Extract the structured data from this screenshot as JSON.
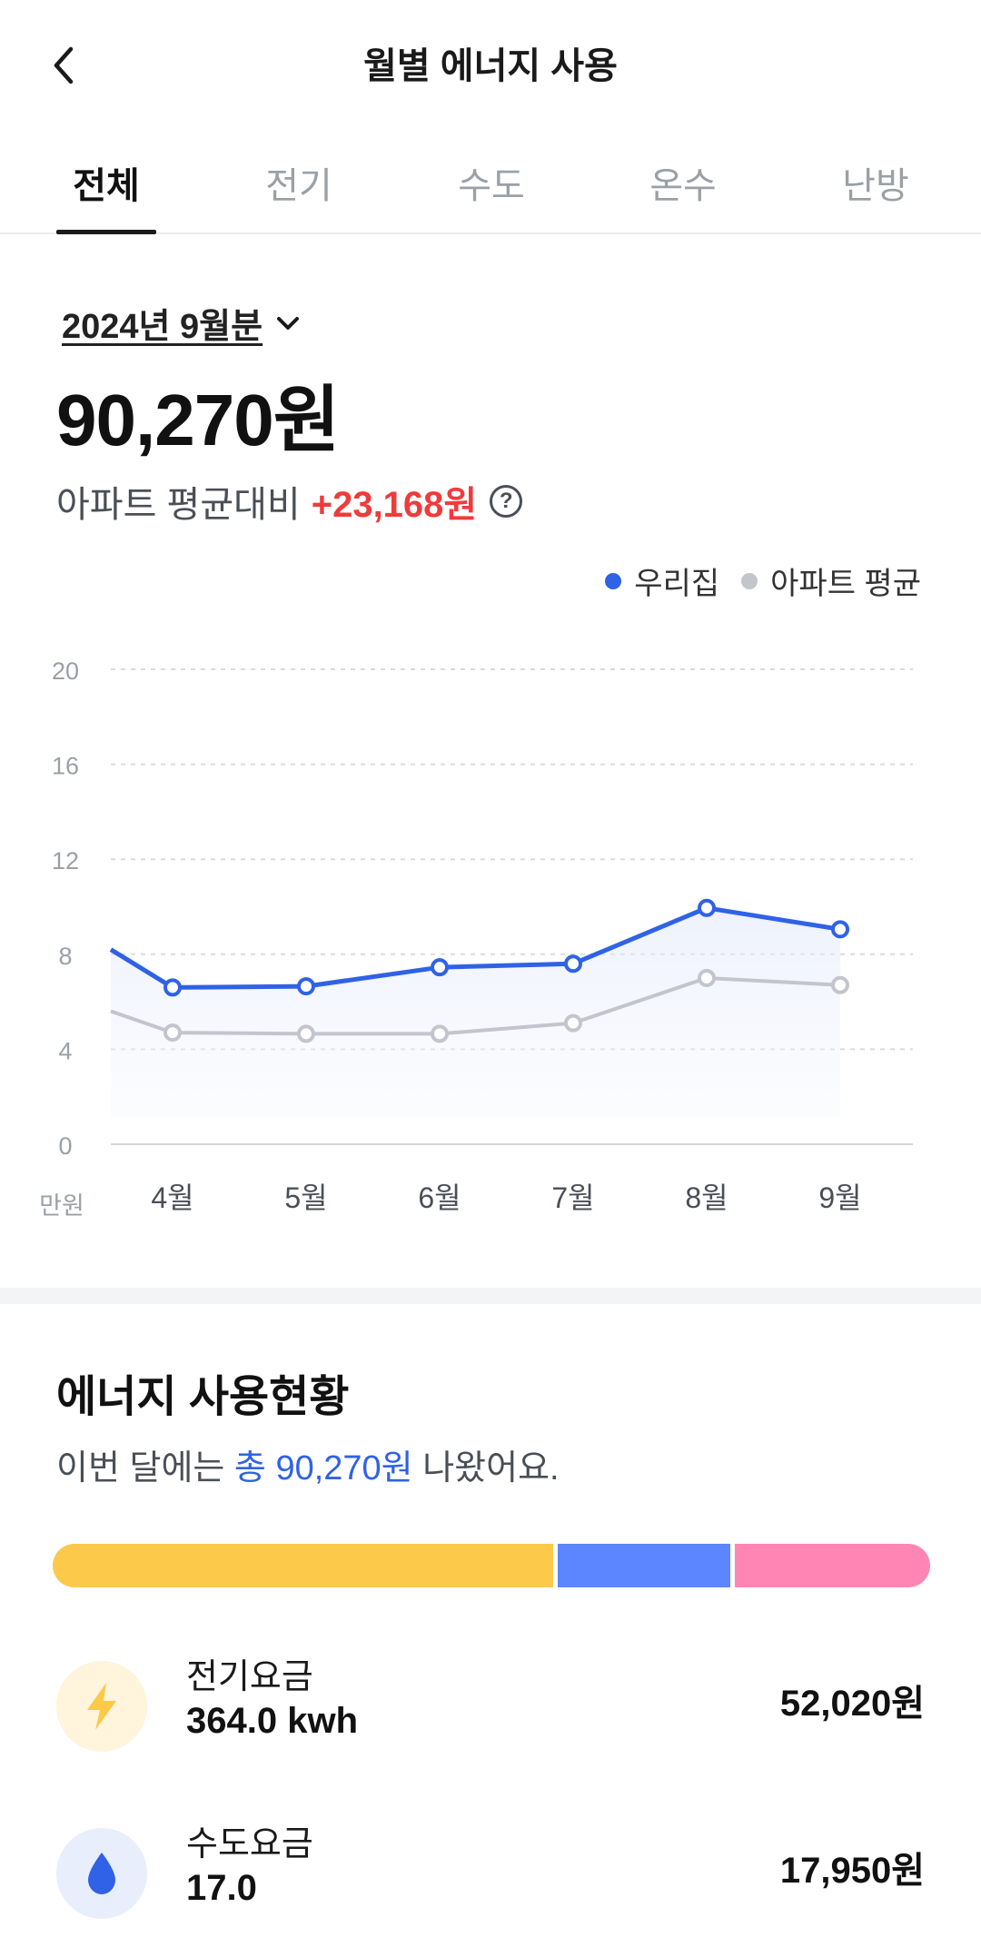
{
  "header": {
    "title": "월별 에너지 사용"
  },
  "tabs": [
    {
      "label": "전체",
      "active": true
    },
    {
      "label": "전기",
      "active": false
    },
    {
      "label": "수도",
      "active": false
    },
    {
      "label": "온수",
      "active": false
    },
    {
      "label": "난방",
      "active": false
    }
  ],
  "summary": {
    "period": "2024년 9월분",
    "total": "90,270원",
    "compare_label": "아파트 평균대비",
    "compare_diff": "+23,168원"
  },
  "legend": {
    "mine": "우리집",
    "avg": "아파트 평균"
  },
  "colors": {
    "mine": "#2f62e6",
    "avg": "#c2c5cc",
    "diff": "#ef3b3b"
  },
  "chart_data": {
    "type": "line",
    "x": [
      "4월",
      "5월",
      "6월",
      "7월",
      "8월",
      "9월"
    ],
    "unit_label": "만원",
    "ylim": [
      0,
      20
    ],
    "yticks": [
      0,
      4,
      8,
      12,
      16,
      20
    ],
    "grid": true,
    "series": [
      {
        "name": "우리집",
        "values": [
          6.6,
          6.65,
          7.45,
          7.6,
          9.95,
          9.05
        ]
      },
      {
        "name": "아파트 평균",
        "values": [
          4.7,
          4.65,
          4.65,
          5.1,
          7.0,
          6.7
        ]
      }
    ]
  },
  "usage": {
    "title": "에너지 사용현황",
    "sub_prefix": "이번 달에는",
    "sub_highlight": "총 90,270원",
    "sub_suffix": "나왔어요.",
    "stack": [
      {
        "value": 52020,
        "color": "#fcc94a"
      },
      {
        "value": 17950,
        "color": "#5b86ff"
      },
      {
        "value": 20300,
        "color": "#ff86b4"
      }
    ],
    "items": [
      {
        "name": "전기요금",
        "amount": "364.0 kwh",
        "cost": "52,020원",
        "icon": "lightning-icon"
      },
      {
        "name": "수도요금",
        "amount": "17.0",
        "cost": "17,950원",
        "icon": "water-drop-icon"
      }
    ]
  }
}
